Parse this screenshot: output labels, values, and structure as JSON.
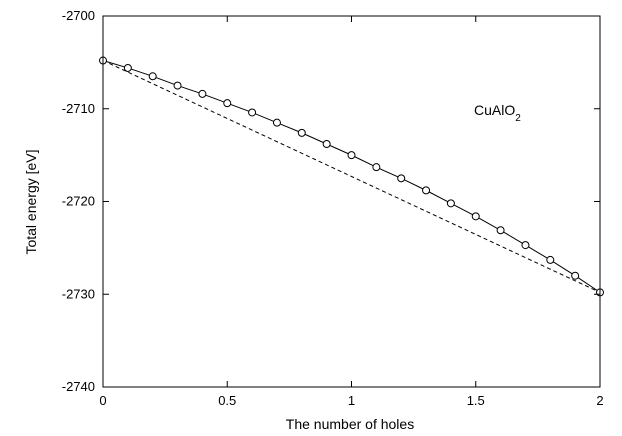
{
  "chart_data": {
    "type": "line",
    "xlabel": "The number of holes",
    "ylabel": "Total energy [eV]",
    "xlim": [
      0,
      2
    ],
    "ylim": [
      -2740,
      -2700
    ],
    "x_ticks": [
      0,
      0.5,
      1,
      1.5,
      2
    ],
    "x_tick_labels": [
      "0",
      "0.5",
      "1",
      "1.5",
      "2"
    ],
    "y_ticks": [
      -2740,
      -2730,
      -2720,
      -2710,
      -2700
    ],
    "y_tick_labels": [
      "-2740",
      "-2730",
      "-2720",
      "-2710",
      "-2700"
    ],
    "grid": false,
    "annotation": {
      "base": "CuAlO",
      "subscript": "2"
    },
    "series": [
      {
        "style": "solid-line-with-open-circles",
        "x": [
          0,
          0.1,
          0.2,
          0.3,
          0.4,
          0.5,
          0.6,
          0.7,
          0.8,
          0.9,
          1.0,
          1.1,
          1.2,
          1.3,
          1.4,
          1.5,
          1.6,
          1.7,
          1.8,
          1.9,
          2.0
        ],
        "y": [
          -2704.8,
          -2705.6,
          -2706.5,
          -2707.5,
          -2708.4,
          -2709.4,
          -2710.4,
          -2711.5,
          -2712.6,
          -2713.8,
          -2715.0,
          -2716.3,
          -2717.5,
          -2718.8,
          -2720.2,
          -2721.6,
          -2723.1,
          -2724.7,
          -2726.3,
          -2728.0,
          -2729.8
        ]
      },
      {
        "style": "dashed-line",
        "x": [
          0,
          2
        ],
        "y": [
          -2704.8,
          -2729.8
        ]
      }
    ]
  }
}
